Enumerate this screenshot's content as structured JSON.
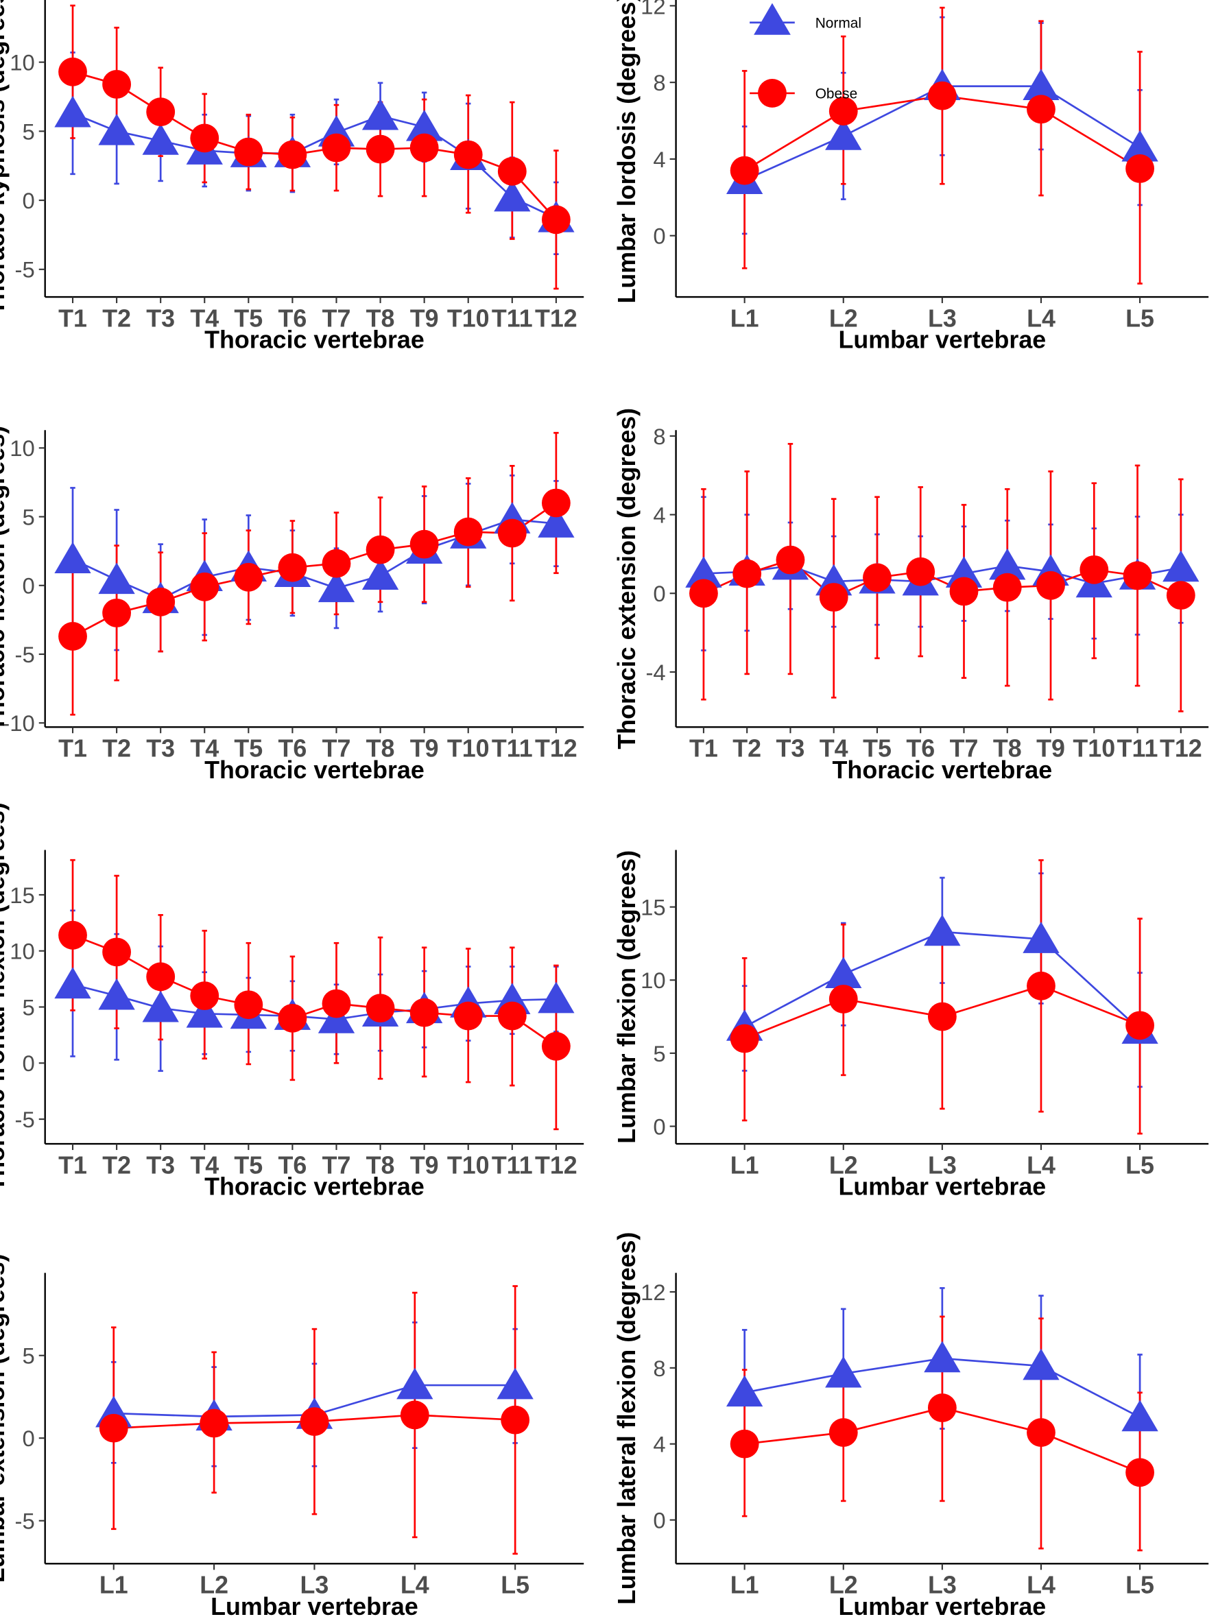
{
  "legend": {
    "normal_label": "Normal",
    "obese_label": "Obese"
  },
  "colors": {
    "normal": "#3e48e0",
    "obese": "#ff0000",
    "axis": "#000000"
  },
  "chart_data": [
    {
      "id": "thoracic-kyphosis",
      "type": "line",
      "xlabel": "Thoracic vertebrae",
      "ylabel": "Thoracic kyphosis (degrees)",
      "categories": [
        "T1",
        "T2",
        "T3",
        "T4",
        "T5",
        "T6",
        "T7",
        "T8",
        "T9",
        "T10",
        "T11",
        "T12"
      ],
      "ylim": [
        -7,
        14.5
      ],
      "yticks": [
        -5,
        0,
        5,
        10
      ],
      "ytick_labels": [
        "-5",
        "0",
        "5",
        "10"
      ],
      "series": [
        {
          "name": "Normal",
          "values": [
            6.3,
            5.0,
            4.3,
            3.6,
            3.4,
            3.4,
            4.9,
            6.1,
            5.3,
            3.2,
            0.2,
            -1.3
          ],
          "err_low": [
            1.9,
            1.2,
            1.4,
            1.0,
            0.7,
            0.6,
            2.6,
            3.7,
            2.8,
            -0.6,
            -2.7,
            -3.9
          ],
          "err_high": [
            10.7,
            8.8,
            7.2,
            6.2,
            6.1,
            6.2,
            7.3,
            8.5,
            7.8,
            7.0,
            3.1,
            1.3
          ]
        },
        {
          "name": "Obese",
          "values": [
            9.3,
            8.4,
            6.4,
            4.5,
            3.5,
            3.3,
            3.8,
            3.7,
            3.8,
            3.3,
            2.1,
            -1.4
          ],
          "err_low": [
            4.5,
            4.3,
            3.2,
            1.3,
            0.8,
            0.7,
            0.7,
            0.3,
            0.3,
            -0.9,
            -2.8,
            -6.4
          ],
          "err_high": [
            14.1,
            12.5,
            9.6,
            7.7,
            6.2,
            6.0,
            6.9,
            7.1,
            7.3,
            7.6,
            7.1,
            3.6
          ]
        }
      ]
    },
    {
      "id": "lumbar-lordosis",
      "type": "line",
      "xlabel": "Lumbar vertebrae",
      "ylabel": "Lumbar lordosis (degrees)",
      "categories": [
        "L1",
        "L2",
        "L3",
        "L4",
        "L5"
      ],
      "ylim": [
        -3.2,
        12.3
      ],
      "yticks": [
        0,
        4,
        8,
        12
      ],
      "ytick_labels": [
        "0",
        "4",
        "8",
        "12"
      ],
      "series": [
        {
          "name": "Normal",
          "values": [
            2.9,
            5.2,
            7.8,
            7.8,
            4.6
          ],
          "err_low": [
            0.1,
            1.9,
            4.2,
            4.5,
            1.6
          ],
          "err_high": [
            5.7,
            8.5,
            11.4,
            11.1,
            7.6
          ]
        },
        {
          "name": "Obese",
          "values": [
            3.4,
            6.5,
            7.3,
            6.6,
            3.5
          ],
          "err_low": [
            -1.7,
            2.7,
            2.7,
            2.1,
            -2.5
          ],
          "err_high": [
            8.6,
            10.4,
            11.9,
            11.2,
            9.6
          ]
        }
      ]
    },
    {
      "id": "thoracic-flexion",
      "type": "line",
      "xlabel": "Thoracic vertebrae",
      "ylabel": "Thoracic flexion (degrees)",
      "categories": [
        "T1",
        "T2",
        "T3",
        "T4",
        "T5",
        "T6",
        "T7",
        "T8",
        "T9",
        "T10",
        "T11",
        "T12"
      ],
      "ylim": [
        -10.3,
        11.3
      ],
      "yticks": [
        -10,
        -5,
        0,
        5,
        10
      ],
      "ytick_labels": [
        "-10",
        "-5",
        "0",
        "5",
        "10"
      ],
      "series": [
        {
          "name": "Normal",
          "values": [
            1.9,
            0.4,
            -1.0,
            0.6,
            1.3,
            0.9,
            -0.2,
            0.7,
            2.6,
            3.7,
            4.8,
            4.5
          ],
          "err_low": [
            -3.2,
            -4.7,
            -4.8,
            -3.6,
            -2.5,
            -2.2,
            -3.1,
            -1.9,
            -1.3,
            0.0,
            1.6,
            1.4
          ],
          "err_high": [
            7.1,
            5.5,
            3.0,
            4.8,
            5.1,
            4.0,
            2.7,
            3.3,
            6.5,
            7.4,
            8.0,
            7.6
          ]
        },
        {
          "name": "Obese",
          "values": [
            -3.7,
            -2.0,
            -1.2,
            -0.1,
            0.6,
            1.3,
            1.6,
            2.6,
            3.0,
            3.9,
            3.8,
            6.0
          ],
          "err_low": [
            -9.4,
            -6.9,
            -4.8,
            -4.0,
            -2.8,
            -2.0,
            -2.1,
            -1.2,
            -1.2,
            -0.1,
            -1.1,
            0.9
          ],
          "err_high": [
            2.0,
            2.9,
            2.4,
            3.8,
            4.0,
            4.7,
            5.3,
            6.4,
            7.2,
            7.8,
            8.7,
            11.1
          ]
        }
      ]
    },
    {
      "id": "thoracic-extension",
      "type": "line",
      "xlabel": "Thoracic vertebrae",
      "ylabel": "Thoracic extension (degrees)",
      "categories": [
        "T1",
        "T2",
        "T3",
        "T4",
        "T5",
        "T6",
        "T7",
        "T8",
        "T9",
        "T10",
        "T11",
        "T12"
      ],
      "ylim": [
        -6.8,
        8.3
      ],
      "yticks": [
        -4,
        0,
        4,
        8
      ],
      "ytick_labels": [
        "-4",
        "0",
        "4",
        "8"
      ],
      "series": [
        {
          "name": "Normal",
          "values": [
            1.0,
            1.1,
            1.4,
            0.6,
            0.7,
            0.6,
            1.0,
            1.4,
            1.1,
            0.5,
            0.9,
            1.3
          ],
          "err_low": [
            -2.9,
            -1.9,
            -0.8,
            -1.7,
            -1.6,
            -1.7,
            -1.4,
            -0.9,
            -1.3,
            -2.3,
            -2.1,
            -1.5
          ],
          "err_high": [
            4.9,
            4.0,
            3.6,
            2.9,
            3.0,
            2.9,
            3.4,
            3.7,
            3.5,
            3.3,
            3.9,
            4.0
          ]
        },
        {
          "name": "Obese",
          "values": [
            0.0,
            1.0,
            1.7,
            -0.2,
            0.8,
            1.1,
            0.1,
            0.3,
            0.4,
            1.2,
            0.9,
            -0.1
          ],
          "err_low": [
            -5.4,
            -4.1,
            -4.1,
            -5.3,
            -3.3,
            -3.2,
            -4.3,
            -4.7,
            -5.4,
            -3.3,
            -4.7,
            -6.0
          ],
          "err_high": [
            5.3,
            6.2,
            7.6,
            4.8,
            4.9,
            5.4,
            4.5,
            5.3,
            6.2,
            5.6,
            6.5,
            5.8
          ]
        }
      ]
    },
    {
      "id": "thoracic-frontal-flexion",
      "type": "line",
      "xlabel": "Thoracic vertebrae",
      "ylabel": "Thoracic frontal flexion (degrees)",
      "categories": [
        "T1",
        "T2",
        "T3",
        "T4",
        "T5",
        "T6",
        "T7",
        "T8",
        "T9",
        "T10",
        "T11",
        "T12"
      ],
      "ylim": [
        -7.2,
        19.0
      ],
      "yticks": [
        -5,
        0,
        5,
        10,
        15
      ],
      "ytick_labels": [
        "-5",
        "0",
        "5",
        "10",
        "15"
      ],
      "series": [
        {
          "name": "Normal",
          "values": [
            7.0,
            6.0,
            4.9,
            4.4,
            4.3,
            4.2,
            3.9,
            4.5,
            4.8,
            5.3,
            5.6,
            5.7
          ],
          "err_low": [
            0.6,
            0.3,
            -0.7,
            0.8,
            1.0,
            1.1,
            0.8,
            1.1,
            1.4,
            2.0,
            2.6,
            2.8
          ],
          "err_high": [
            13.6,
            11.5,
            10.4,
            8.1,
            7.6,
            7.3,
            7.0,
            7.9,
            8.2,
            8.6,
            8.6,
            8.6
          ]
        },
        {
          "name": "Obese",
          "values": [
            11.4,
            9.9,
            7.7,
            6.0,
            5.2,
            4.0,
            5.3,
            4.9,
            4.5,
            4.2,
            4.2,
            1.5
          ],
          "err_low": [
            4.7,
            3.1,
            2.1,
            0.4,
            -0.1,
            -1.5,
            0.0,
            -1.4,
            -1.2,
            -1.7,
            -2.0,
            -5.9
          ],
          "err_high": [
            18.1,
            16.7,
            13.2,
            11.8,
            10.7,
            9.5,
            10.7,
            11.2,
            10.3,
            10.2,
            10.3,
            8.7
          ]
        }
      ]
    },
    {
      "id": "lumbar-flexion",
      "type": "line",
      "xlabel": "Lumbar vertebrae",
      "ylabel": "Lumbar flexion (degrees)",
      "categories": [
        "L1",
        "L2",
        "L3",
        "L4",
        "L5"
      ],
      "ylim": [
        -1.2,
        18.9
      ],
      "yticks": [
        0,
        5,
        10,
        15
      ],
      "ytick_labels": [
        "0",
        "5",
        "10",
        "15"
      ],
      "series": [
        {
          "name": "Normal",
          "values": [
            6.8,
            10.4,
            13.3,
            12.8,
            6.6
          ],
          "err_low": [
            3.8,
            6.9,
            9.8,
            8.4,
            2.7
          ],
          "err_high": [
            9.6,
            13.9,
            17.0,
            17.3,
            10.5
          ]
        },
        {
          "name": "Obese",
          "values": [
            6.0,
            8.7,
            7.5,
            9.6,
            6.9
          ],
          "err_low": [
            0.4,
            3.5,
            1.2,
            1.0,
            -0.5
          ],
          "err_high": [
            11.5,
            13.8,
            13.2,
            18.2,
            14.2
          ]
        }
      ]
    },
    {
      "id": "lumbar-extension",
      "type": "line",
      "xlabel": "Lumbar vertebrae",
      "ylabel": "Lumbar extension (degrees)",
      "categories": [
        "L1",
        "L2",
        "L3",
        "L4",
        "L5"
      ],
      "ylim": [
        -7.6,
        10.0
      ],
      "yticks": [
        -5,
        0,
        5
      ],
      "ytick_labels": [
        "-5",
        "0",
        "5"
      ],
      "series": [
        {
          "name": "Normal",
          "values": [
            1.5,
            1.3,
            1.4,
            3.2,
            3.2
          ],
          "err_low": [
            -1.5,
            -1.7,
            -1.7,
            -0.6,
            -0.3
          ],
          "err_high": [
            4.6,
            4.3,
            4.5,
            7.0,
            6.6
          ]
        },
        {
          "name": "Obese",
          "values": [
            0.6,
            0.9,
            1.0,
            1.4,
            1.1
          ],
          "err_low": [
            -5.5,
            -3.3,
            -4.6,
            -6.0,
            -7.0
          ],
          "err_high": [
            6.7,
            5.2,
            6.6,
            8.8,
            9.2
          ]
        }
      ]
    },
    {
      "id": "lumbar-lateral-flexion",
      "type": "line",
      "xlabel": "Lumbar vertebrae",
      "ylabel": "Lumbar lateral flexion (degrees)",
      "categories": [
        "L1",
        "L2",
        "L3",
        "L4",
        "L5"
      ],
      "ylim": [
        -2.3,
        13.0
      ],
      "yticks": [
        0,
        4,
        8,
        12
      ],
      "ytick_labels": [
        "0",
        "4",
        "8",
        "12"
      ],
      "series": [
        {
          "name": "Normal",
          "values": [
            6.7,
            7.7,
            8.5,
            8.1,
            5.4
          ],
          "err_low": [
            3.4,
            4.4,
            4.8,
            4.4,
            2.2
          ],
          "err_high": [
            10.0,
            11.1,
            12.2,
            11.8,
            8.7
          ]
        },
        {
          "name": "Obese",
          "values": [
            4.0,
            4.6,
            5.9,
            4.6,
            2.5
          ],
          "err_low": [
            0.2,
            1.0,
            1.0,
            -1.5,
            -1.6
          ],
          "err_high": [
            7.9,
            8.3,
            10.7,
            10.6,
            6.7
          ]
        }
      ]
    }
  ]
}
